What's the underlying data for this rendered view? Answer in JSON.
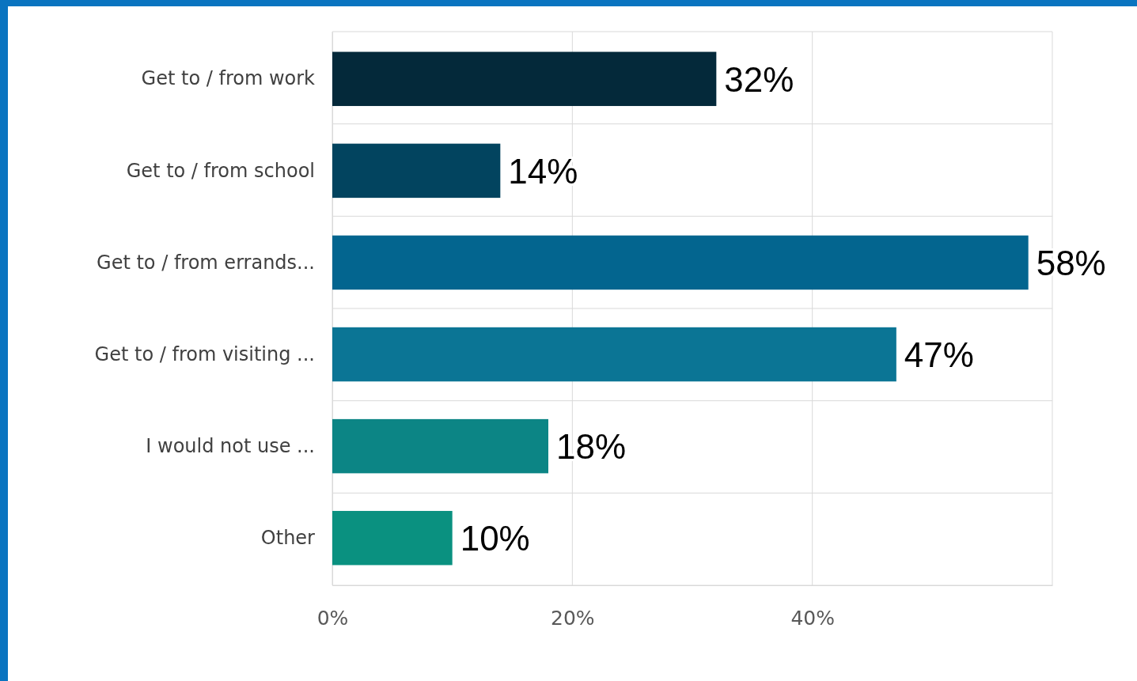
{
  "chart_data": {
    "type": "bar",
    "orientation": "horizontal",
    "categories": [
      "Get to / from work",
      "Get to / from school",
      "Get to / from errands...",
      "Get to / from visiting ...",
      "I would not use ...",
      "Other"
    ],
    "values": [
      32,
      14,
      58,
      47,
      18,
      10
    ],
    "colors": [
      "#04293a",
      "#02445f",
      "#03658f",
      "#0b7595",
      "#0c8585",
      "#0a9180"
    ],
    "value_labels": [
      "32%",
      "14%",
      "58%",
      "47%",
      "18%",
      "10%"
    ],
    "xlim": [
      0,
      60
    ],
    "xticks": [
      {
        "value": 0,
        "label": "0%"
      },
      {
        "value": 20,
        "label": "20%"
      },
      {
        "value": 40,
        "label": "40%"
      },
      {
        "value": 60,
        "label": null
      }
    ],
    "grid": true
  }
}
